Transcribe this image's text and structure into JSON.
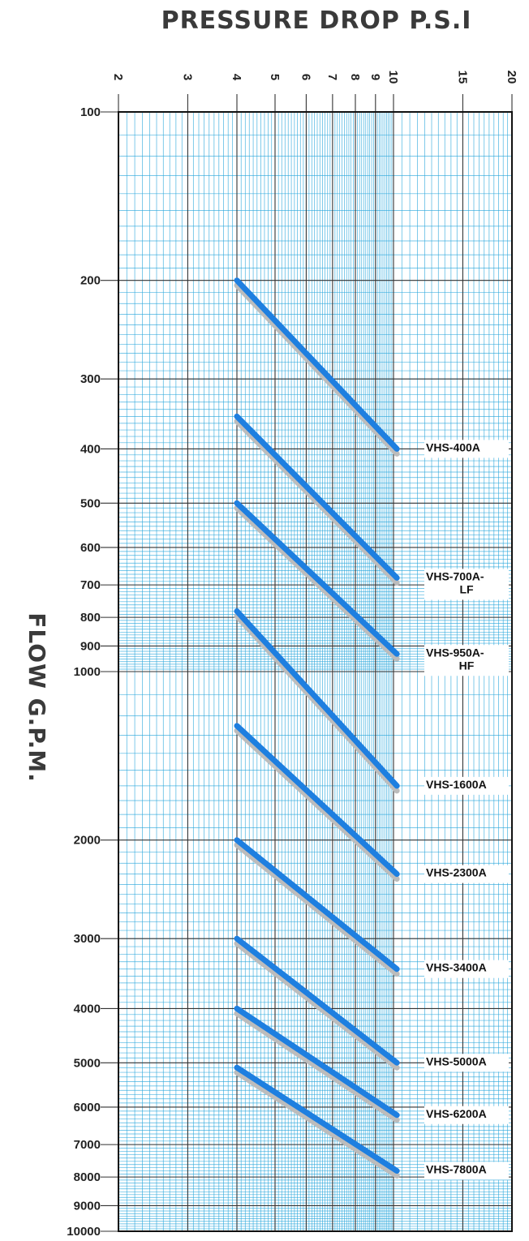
{
  "chart_data": {
    "type": "line",
    "title": "PRESSURE DROP P.S.I",
    "xlabel": "PRESSURE DROP P.S.I",
    "ylabel": "FLOW G.P.M.",
    "x_scale": "log",
    "y_scale": "log",
    "xlim": [
      2,
      20
    ],
    "ylim": [
      100,
      10000
    ],
    "x_ticks": [
      "2",
      "3",
      "4",
      "5",
      "6",
      "7",
      "8",
      "9",
      "10",
      "15",
      "20"
    ],
    "y_ticks": [
      "100",
      "200",
      "300",
      "400",
      "500",
      "600",
      "700",
      "800",
      "900",
      "1000",
      "2000",
      "3000",
      "4000",
      "5000",
      "6000",
      "7000",
      "8000",
      "9000",
      "10000"
    ],
    "grid": true,
    "colors": {
      "grid": "#2aa7dc",
      "line": "#1e7fe0",
      "shadow": "#bcbcbc",
      "frame": "#111111"
    },
    "series": [
      {
        "label_lines": [
          "VHS-400A"
        ],
        "x": [
          4,
          10.2
        ],
        "y": [
          200,
          400
        ]
      },
      {
        "label_lines": [
          "VHS-700A-",
          "LF"
        ],
        "x": [
          4,
          10.2
        ],
        "y": [
          350,
          680
        ]
      },
      {
        "label_lines": [
          "VHS-950A-",
          "HF"
        ],
        "x": [
          4,
          10.2
        ],
        "y": [
          500,
          930
        ]
      },
      {
        "label_lines": [
          "VHS-1600A"
        ],
        "x": [
          4,
          10.2
        ],
        "y": [
          780,
          1600
        ]
      },
      {
        "label_lines": [
          "VHS-2300A"
        ],
        "x": [
          4,
          10.2
        ],
        "y": [
          1250,
          2300
        ]
      },
      {
        "label_lines": [
          "VHS-3400A"
        ],
        "x": [
          4,
          10.2
        ],
        "y": [
          2000,
          3400
        ]
      },
      {
        "label_lines": [
          "VHS-5000A"
        ],
        "x": [
          4,
          10.2
        ],
        "y": [
          3000,
          5000
        ]
      },
      {
        "label_lines": [
          "VHS-6200A"
        ],
        "x": [
          4,
          10.2
        ],
        "y": [
          4000,
          6200
        ]
      },
      {
        "label_lines": [
          "VHS-7800A"
        ],
        "x": [
          4,
          10.2
        ],
        "y": [
          5100,
          7800
        ]
      }
    ]
  }
}
